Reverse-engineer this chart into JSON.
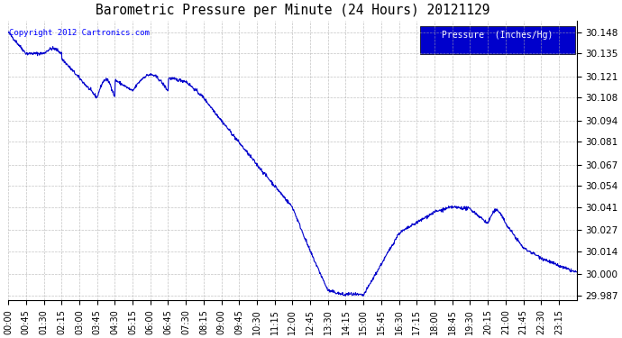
{
  "title": "Barometric Pressure per Minute (24 Hours) 20121129",
  "copyright_text": "Copyright 2012 Cartronics.com",
  "legend_text": "Pressure  (Inches/Hg)",
  "line_color": "#0000CC",
  "background_color": "#ffffff",
  "plot_bg_color": "#ffffff",
  "grid_color": "#aaaaaa",
  "legend_bg": "#0000CC",
  "legend_fg": "#ffffff",
  "ylim": [
    29.984,
    30.155
  ],
  "yticks": [
    29.987,
    30.0,
    30.014,
    30.027,
    30.041,
    30.054,
    30.067,
    30.081,
    30.094,
    30.108,
    30.121,
    30.135,
    30.148
  ],
  "xtick_labels": [
    "00:00",
    "00:45",
    "01:30",
    "02:15",
    "03:00",
    "03:45",
    "04:30",
    "05:15",
    "06:00",
    "06:45",
    "07:30",
    "08:15",
    "09:00",
    "09:45",
    "10:30",
    "11:15",
    "12:00",
    "12:45",
    "13:30",
    "14:15",
    "15:00",
    "15:45",
    "16:30",
    "17:15",
    "18:00",
    "18:45",
    "19:30",
    "20:15",
    "21:00",
    "21:45",
    "22:30",
    "23:15"
  ]
}
